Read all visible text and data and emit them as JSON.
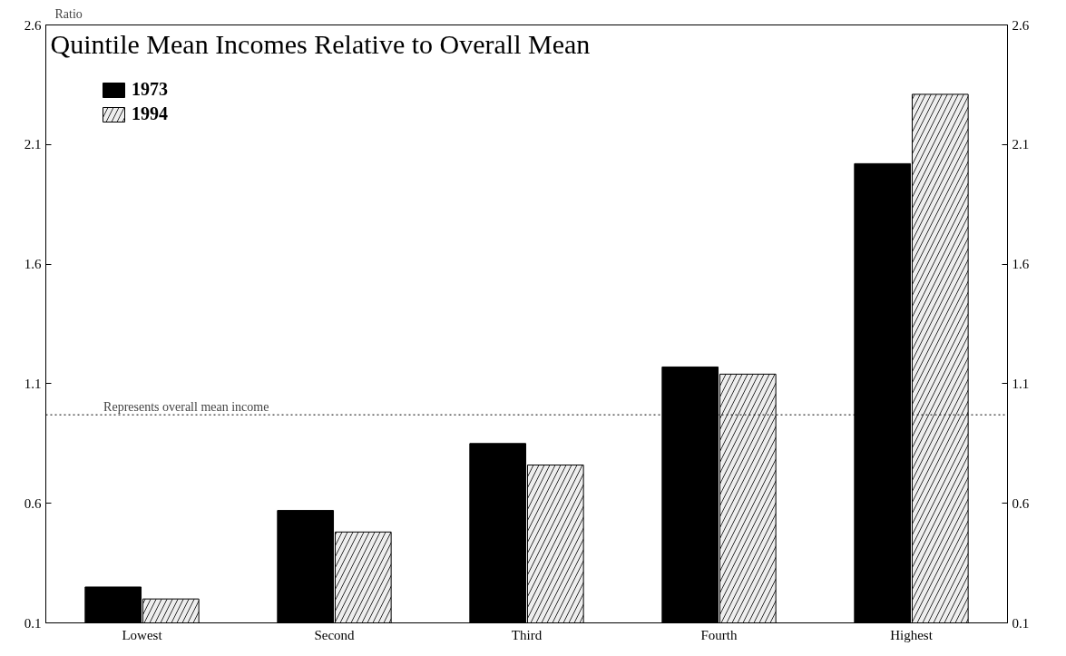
{
  "chart_data": {
    "type": "bar",
    "title": "Quintile Mean Incomes Relative to Overall Mean",
    "ylabel": "Ratio",
    "categories": [
      "Lowest",
      "Second",
      "Third",
      "Fourth",
      "Highest"
    ],
    "series": [
      {
        "name": "1973",
        "color": "#000000",
        "values": [
          0.25,
          0.57,
          0.85,
          1.17,
          2.02
        ]
      },
      {
        "name": "1994",
        "color": "#eeeeee",
        "values": [
          0.2,
          0.48,
          0.76,
          1.14,
          2.31
        ]
      }
    ],
    "ylim": [
      0.1,
      2.6
    ],
    "yticks": [
      0.1,
      0.6,
      1.1,
      1.6,
      2.1,
      2.6
    ],
    "y2lim": [
      0.1,
      2.6
    ],
    "y2ticks": [
      0.1,
      0.6,
      1.1,
      1.6,
      2.1,
      2.6
    ],
    "ref_lines": [
      {
        "axis": "y",
        "value": 0.97,
        "label": "Represents overall mean income",
        "line_style": "dotted"
      }
    ],
    "grid": false,
    "legend": "top left"
  }
}
